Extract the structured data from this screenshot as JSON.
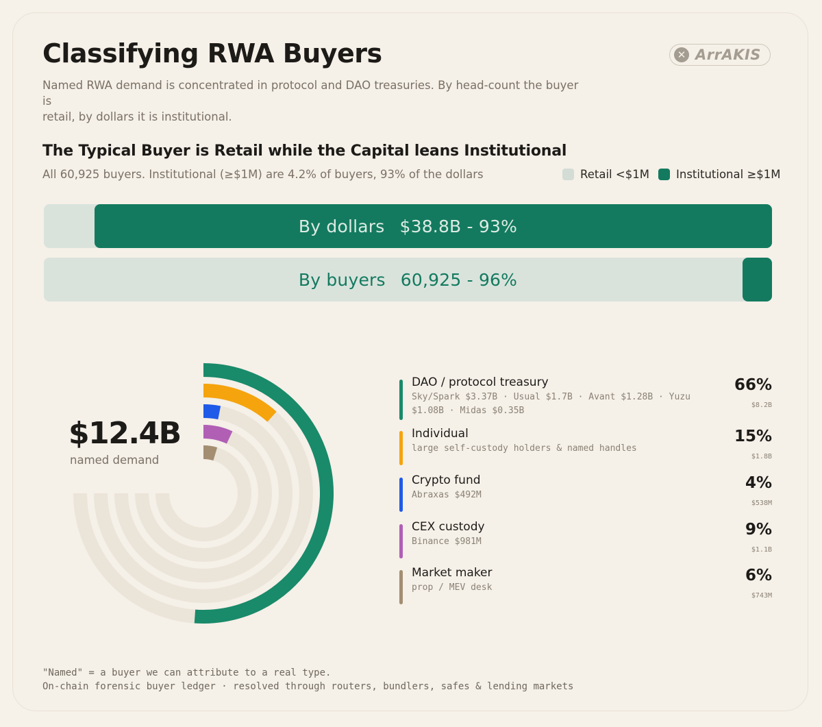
{
  "header": {
    "title": "Classifying RWA Buyers",
    "subtitle_line1": "Named RWA demand is concentrated in protocol and DAO treasuries. By head-count the buyer is",
    "subtitle_line2": "retail, by dollars it is institutional.",
    "logo_text": "ArrAKIS"
  },
  "colors": {
    "retail": "#d3dcd5",
    "institutional": "#137a5f",
    "dao": "#198a6a",
    "individual": "#f5a40d",
    "crypto_fund": "#1f5ae8",
    "cex": "#b05fb5",
    "market_maker": "#a38e72",
    "track": "#ebe4d9"
  },
  "split_section": {
    "heading": "The Typical Buyer is Retail while the Capital leans Institutional",
    "subheading": "All 60,925 buyers. Institutional (≥$1M) are 4.2% of buyers, 93% of the dollars",
    "legend": {
      "retail": "Retail <$1M",
      "institutional": "Institutional ≥$1M"
    }
  },
  "chart_data": [
    {
      "type": "bar",
      "orientation": "horizontal-stacked",
      "series": [
        {
          "name": "Retail <$1M",
          "values": [
            0.07,
            0.96
          ]
        },
        {
          "name": "Institutional ≥$1M",
          "values": [
            0.93,
            0.04
          ]
        }
      ],
      "bars": [
        {
          "label": "By dollars",
          "value_text": "$38.8B - 93%"
        },
        {
          "label": "By buyers",
          "value_text": "60,925  - 96%"
        }
      ]
    },
    {
      "type": "radial-bar",
      "total_value": "$12.4B",
      "total_label": "named demand",
      "categories": [
        {
          "name": "DAO / protocol treasury",
          "details": [
            "Sky/Spark $3.37B · Usual $1.7B · Avant $1.28B · Yuzu",
            "$1.08B · Midas $0.35B"
          ],
          "pct": "66%",
          "amount": "$8.2B",
          "share": 0.66,
          "color_key": "dao"
        },
        {
          "name": "Individual",
          "details": [
            "large self-custody holders & named handles"
          ],
          "pct": "15%",
          "amount": "$1.8B",
          "share": 0.15,
          "color_key": "individual"
        },
        {
          "name": "Crypto fund",
          "details": [
            "Abraxas $492M"
          ],
          "pct": "4%",
          "amount": "$538M",
          "share": 0.04,
          "color_key": "crypto_fund"
        },
        {
          "name": "CEX custody",
          "details": [
            "Binance $981M"
          ],
          "pct": "9%",
          "amount": "$1.1B",
          "share": 0.09,
          "color_key": "cex"
        },
        {
          "name": "Market maker",
          "details": [
            "prop / MEV desk"
          ],
          "pct": "6%",
          "amount": "$743M",
          "share": 0.06,
          "color_key": "market_maker"
        }
      ]
    }
  ],
  "footnote": {
    "line1": "\"Named\" = a buyer we can attribute to a real type.",
    "line2": "On-chain forensic buyer ledger · resolved through routers, bundlers, safes & lending markets"
  }
}
